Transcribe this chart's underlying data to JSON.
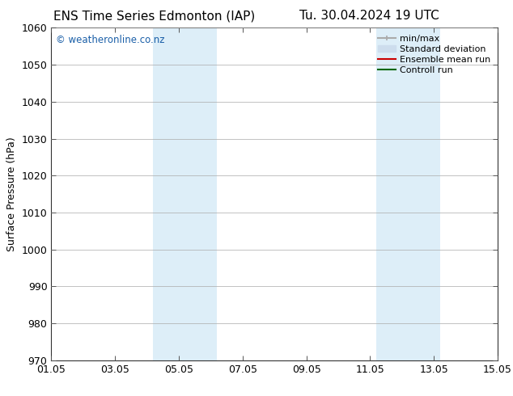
{
  "title_left": "ENS Time Series Edmonton (IAP)",
  "title_right": "Tu. 30.04.2024 19 UTC",
  "ylabel": "Surface Pressure (hPa)",
  "ylim": [
    970,
    1060
  ],
  "yticks": [
    970,
    980,
    990,
    1000,
    1010,
    1020,
    1030,
    1040,
    1050,
    1060
  ],
  "xlim_start": 0,
  "xlim_end": 14,
  "xtick_positions": [
    0,
    2,
    4,
    6,
    8,
    10,
    12,
    14
  ],
  "xtick_labels": [
    "01.05",
    "03.05",
    "05.05",
    "07.05",
    "09.05",
    "11.05",
    "13.05",
    "15.05"
  ],
  "shaded_bands": [
    {
      "x_start": 3.2,
      "x_end": 5.2
    },
    {
      "x_start": 10.2,
      "x_end": 12.2
    }
  ],
  "shade_color": "#ddeef8",
  "watermark_text": "© weatheronline.co.nz",
  "watermark_color": "#1a5fa8",
  "legend_items": [
    {
      "label": "min/max",
      "color": "#aaaaaa",
      "lw": 1.5,
      "ls": "-"
    },
    {
      "label": "Standard deviation",
      "color": "#cddded",
      "lw": 8,
      "ls": "-"
    },
    {
      "label": "Ensemble mean run",
      "color": "#cc0000",
      "lw": 1.5,
      "ls": "-"
    },
    {
      "label": "Controll run",
      "color": "#006600",
      "lw": 1.5,
      "ls": "-"
    }
  ],
  "bg_color": "#ffffff",
  "grid_color": "#aaaaaa",
  "tick_label_font_size": 9,
  "ylabel_font_size": 9,
  "title_font_size": 11,
  "legend_font_size": 8,
  "watermark_font_size": 8.5
}
